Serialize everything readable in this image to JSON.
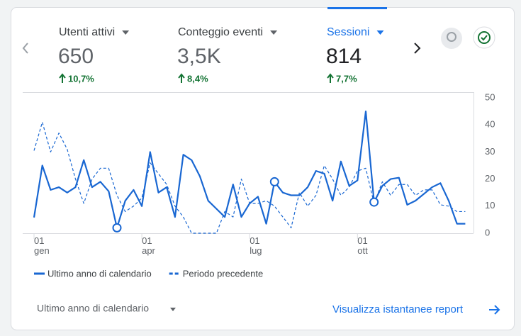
{
  "tabs": [
    {
      "label": "Utenti attivi",
      "value": "650",
      "change": "10,7%",
      "selected": false
    },
    {
      "label": "Conteggio eventi",
      "value": "3,5K",
      "change": "8,4%",
      "selected": false
    },
    {
      "label": "Sessioni",
      "value": "814",
      "change": "7,7%",
      "selected": true
    }
  ],
  "chart_data": {
    "type": "line",
    "categories": [
      "01 gen",
      null,
      null,
      null,
      null,
      null,
      null,
      null,
      null,
      null,
      null,
      null,
      null,
      "01 apr",
      null,
      null,
      null,
      null,
      null,
      null,
      null,
      null,
      null,
      null,
      null,
      null,
      "01 lug",
      null,
      null,
      null,
      null,
      null,
      null,
      null,
      null,
      null,
      null,
      null,
      null,
      "01 ott",
      null,
      null,
      null,
      null,
      null,
      null,
      null,
      null,
      null,
      null,
      null,
      null,
      null
    ],
    "series": [
      {
        "name": "Ultimo anno di calendario",
        "color": "#1967d2",
        "style": "solid",
        "markers": [
          10,
          29,
          41
        ],
        "values": [
          5.8,
          25,
          16,
          17,
          15,
          17,
          27,
          17,
          19,
          15.5,
          2,
          12,
          16,
          10,
          30,
          15,
          17,
          6,
          29,
          27,
          21,
          12,
          9,
          6,
          18,
          6,
          11,
          13.5,
          3.5,
          19,
          15,
          14,
          14,
          17,
          23,
          22,
          12,
          26.5,
          17.5,
          19.5,
          45,
          11.5,
          17.5,
          20,
          20.5,
          10.5,
          12,
          14.5,
          17,
          18.5,
          12,
          3.5,
          3.5
        ]
      },
      {
        "name": "Periodo precedente",
        "color": "#1967d2",
        "style": "dashed",
        "values": [
          30.5,
          41,
          30,
          37,
          31,
          20,
          11,
          20,
          24,
          24,
          14,
          8,
          10,
          13,
          26,
          22,
          18,
          10,
          6,
          0,
          0,
          0,
          0,
          8,
          6,
          20,
          11,
          11,
          12,
          10,
          6,
          2,
          15,
          10,
          14,
          25,
          20,
          14,
          17,
          23,
          24,
          11,
          19,
          14,
          18,
          18,
          14,
          16,
          16,
          10.5,
          10,
          8,
          8
        ]
      }
    ],
    "ylim": [
      0,
      50
    ],
    "yticks": [
      0,
      10,
      20,
      30,
      40,
      50
    ],
    "grid": false
  },
  "footer": {
    "range": "Ultimo anno di calendario",
    "link": "Visualizza istantanee report"
  }
}
